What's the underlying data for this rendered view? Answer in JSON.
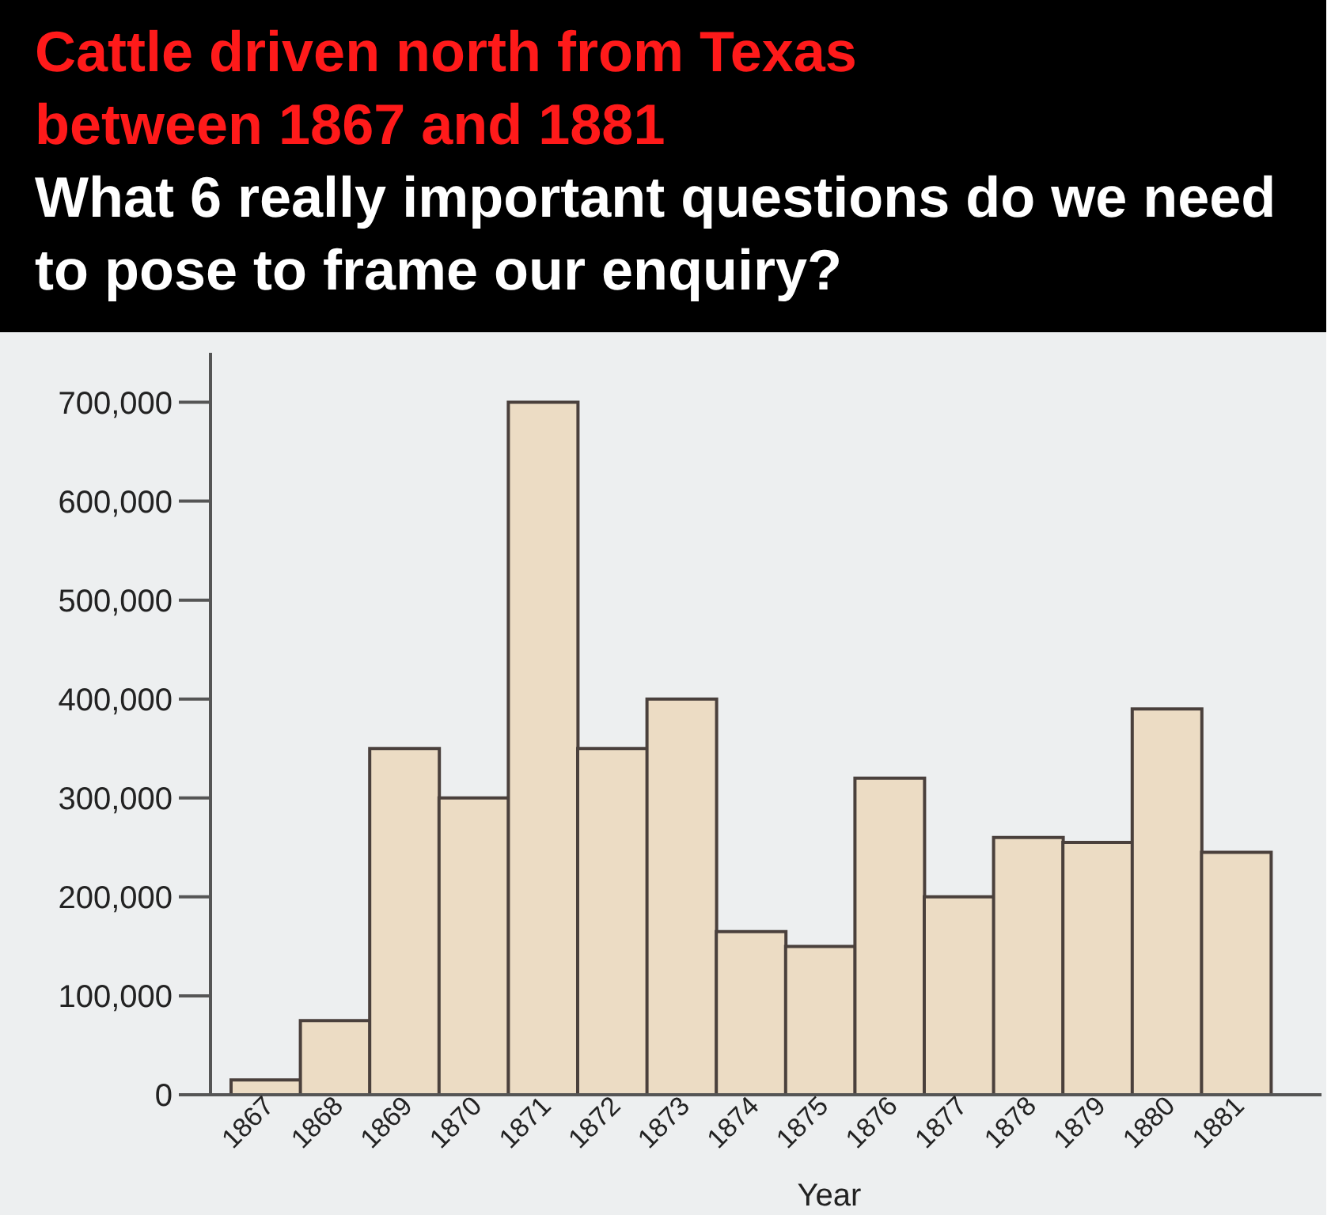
{
  "chart_data": {
    "type": "bar",
    "title": "Cattle driven north from Texas between 1867 and 1881",
    "subtitle": "What 6 really important questions do we need to pose to frame our enquiry?",
    "xlabel": "Year",
    "categories": [
      "1867",
      "1868",
      "1869",
      "1870",
      "1871",
      "1872",
      "1873",
      "1874",
      "1875",
      "1876",
      "1877",
      "1878",
      "1879",
      "1880",
      "1881"
    ],
    "values": [
      15000,
      75000,
      350000,
      300000,
      700000,
      350000,
      400000,
      165000,
      150000,
      320000,
      200000,
      260000,
      255000,
      390000,
      245000
    ],
    "color": "#ecdcc4",
    "ylim": [
      0,
      750000
    ],
    "yticks": [
      0,
      {
        "value": 100000,
        "label": "100,000"
      },
      {
        "value": 200000,
        "label": "200,000"
      },
      {
        "value": 300000,
        "label": "300,000"
      },
      {
        "value": 400000,
        "label": "400,000"
      },
      {
        "value": 500000,
        "label": "500,000"
      },
      {
        "value": 600000,
        "label": "600,000"
      },
      {
        "value": 700000,
        "label": "700,000"
      }
    ]
  }
}
